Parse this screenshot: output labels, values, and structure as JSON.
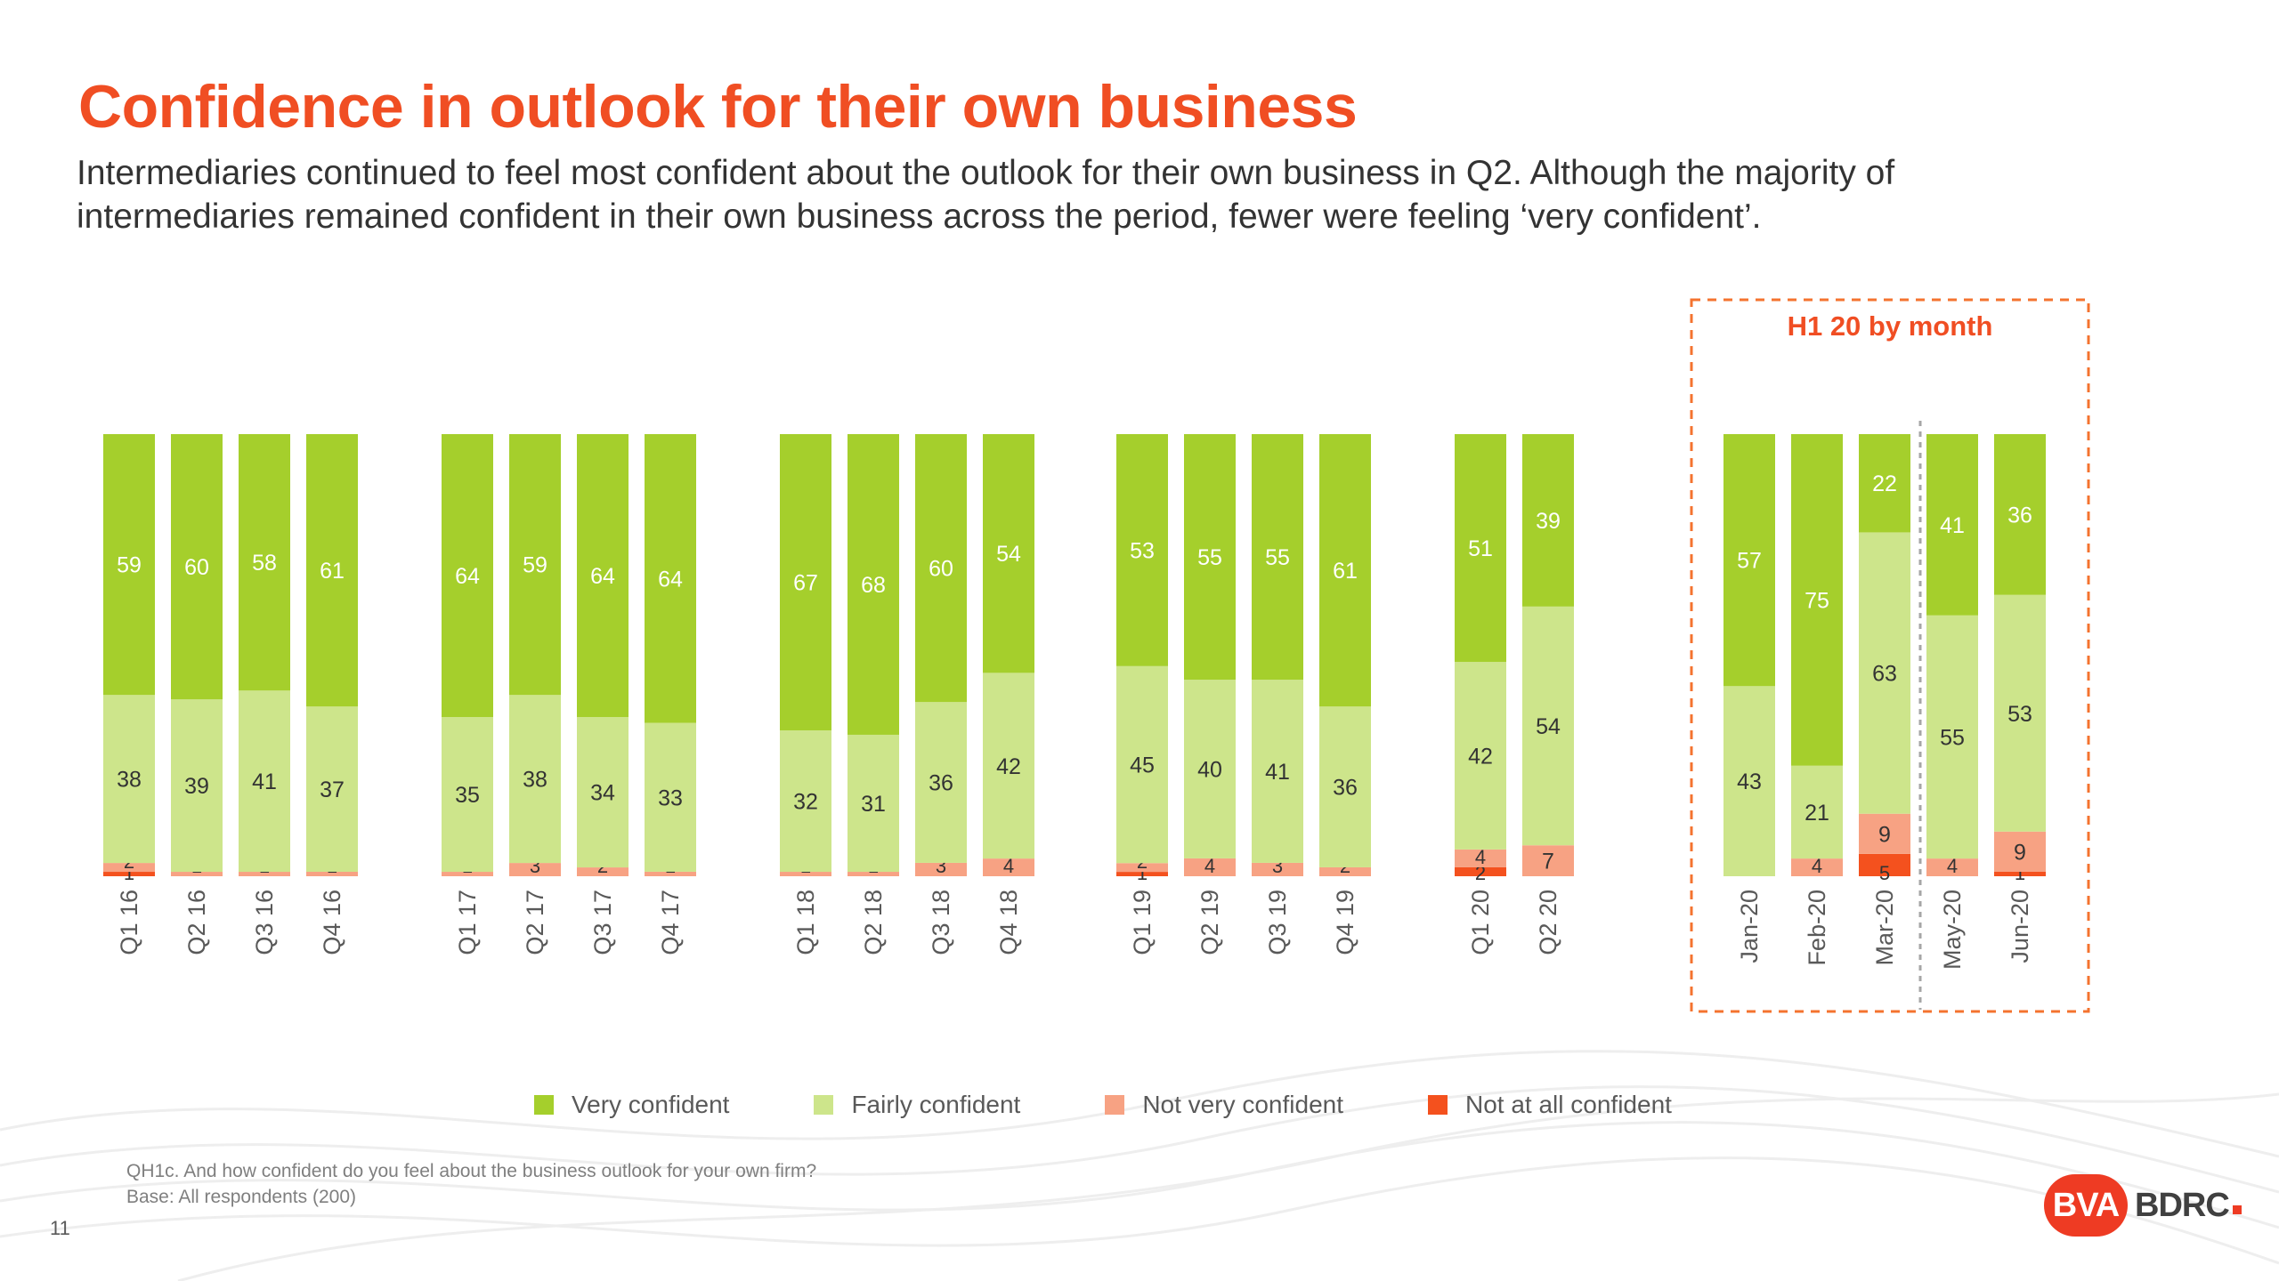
{
  "title": "Confidence in outlook for their own business",
  "subtitle": "Intermediaries continued to feel most confident about the outlook for their own business in Q2. Although the majority of intermediaries remained confident in their own business across the period, fewer were feeling ‘very confident’.",
  "colors": {
    "very_confident": "#a5cf2c",
    "fairly_confident": "#cde58b",
    "not_very_confident": "#f7a283",
    "not_at_all_confident": "#f4511e",
    "title": "#f04e23",
    "highlight_box": "#f4732f"
  },
  "legend": [
    {
      "label": "Very confident",
      "color": "#a5cf2c"
    },
    {
      "label": "Fairly confident",
      "color": "#cde58b"
    },
    {
      "label": "Not very confident",
      "color": "#f7a283"
    },
    {
      "label": "Not at all confident",
      "color": "#f4511e"
    }
  ],
  "chart_data": {
    "type": "bar",
    "stacked": true,
    "orientation": "vertical",
    "highlight_label": "H1 20 by month",
    "categories": [
      "Q1 16",
      "Q2 16",
      "Q3 16",
      "Q4 16",
      "Q1 17",
      "Q2 17",
      "Q3 17",
      "Q4 17",
      "Q1 18",
      "Q2 18",
      "Q3 18",
      "Q4 18",
      "Q1 19",
      "Q2 19",
      "Q3 19",
      "Q4 19",
      "Q1 20",
      "Q2 20",
      "Jan-20",
      "Feb-20",
      "Mar-20",
      "May-20",
      "Jun-20"
    ],
    "series": [
      {
        "name": "Not at all confident",
        "values": [
          1,
          0,
          0,
          0,
          0,
          0,
          0,
          0,
          0,
          0,
          0,
          0,
          1,
          0,
          0,
          0,
          2,
          0,
          0,
          0,
          5,
          0,
          1
        ]
      },
      {
        "name": "Not very confident",
        "values": [
          2,
          1,
          1,
          1,
          1,
          3,
          2,
          1,
          1,
          1,
          3,
          4,
          2,
          4,
          3,
          2,
          4,
          7,
          0,
          4,
          9,
          4,
          9
        ]
      },
      {
        "name": "Fairly confident",
        "values": [
          38,
          39,
          41,
          37,
          35,
          38,
          34,
          33,
          32,
          31,
          36,
          42,
          45,
          40,
          41,
          36,
          42,
          54,
          43,
          21,
          63,
          55,
          53
        ]
      },
      {
        "name": "Very confident",
        "values": [
          59,
          60,
          58,
          61,
          64,
          59,
          64,
          64,
          67,
          68,
          60,
          54,
          53,
          55,
          55,
          61,
          51,
          39,
          57,
          75,
          22,
          41,
          36
        ]
      }
    ],
    "ylim": [
      0,
      100
    ]
  },
  "footnote": {
    "question": "QH1c. And how confident do you feel about the business outlook for your own firm?",
    "base": "Base: All respondents (200)"
  },
  "page_number": "11",
  "logo": {
    "left": "BVA",
    "right": "BDRC"
  }
}
